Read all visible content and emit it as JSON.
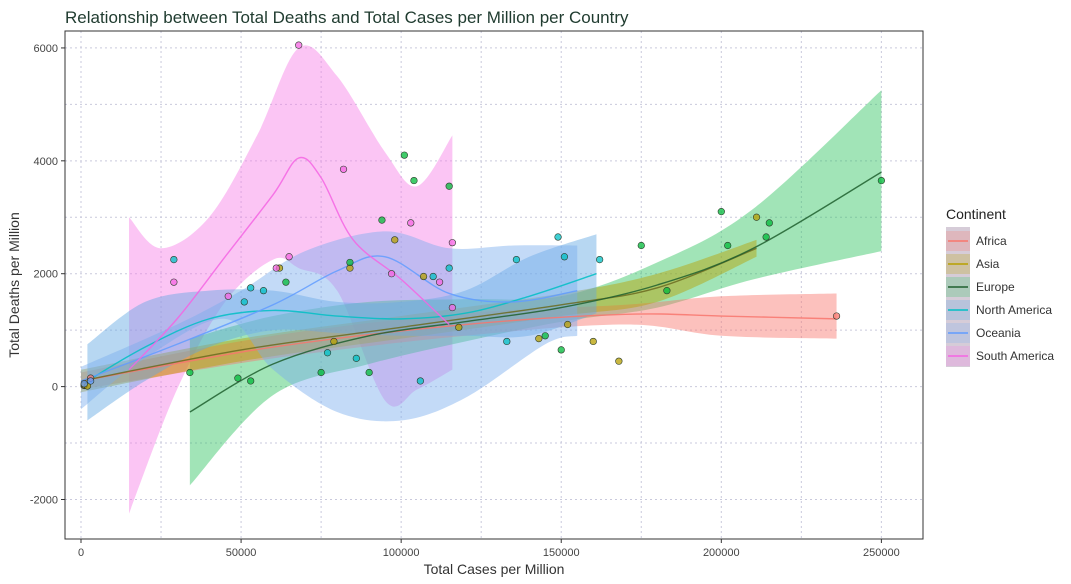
{
  "chart_data": {
    "type": "scatter",
    "title": "Relationship between Total Deaths and Total Cases per Million per Country",
    "xlabel": "Total Cases per Million",
    "ylabel": "Total Deaths per Million",
    "xlim": [
      -5000,
      263000
    ],
    "ylim": [
      -2700,
      6300
    ],
    "x_ticks": [
      0,
      50000,
      100000,
      150000,
      200000,
      250000
    ],
    "y_ticks": [
      -2000,
      0,
      2000,
      4000,
      6000
    ],
    "grid": true,
    "legend": {
      "title": "Continent",
      "position": "right"
    },
    "series": [
      {
        "name": "Africa",
        "color": "#F8766D",
        "points": [
          [
            1000,
            20
          ],
          [
            3000,
            150
          ],
          [
            236000,
            1250
          ]
        ],
        "smooth": [
          [
            0,
            100
          ],
          [
            60000,
            700
          ],
          [
            120000,
            1100
          ],
          [
            170000,
            1280
          ],
          [
            200000,
            1250
          ],
          [
            236000,
            1200
          ]
        ],
        "band_upper": [
          [
            0,
            250
          ],
          [
            60000,
            900
          ],
          [
            120000,
            1300
          ],
          [
            170000,
            1450
          ],
          [
            200000,
            1600
          ],
          [
            236000,
            1650
          ]
        ],
        "band_lower": [
          [
            0,
            -50
          ],
          [
            60000,
            500
          ],
          [
            120000,
            900
          ],
          [
            170000,
            1100
          ],
          [
            200000,
            900
          ],
          [
            236000,
            850
          ]
        ]
      },
      {
        "name": "Asia",
        "color": "#B79F00",
        "points": [
          [
            1000,
            30
          ],
          [
            2000,
            10
          ],
          [
            62000,
            2100
          ],
          [
            79000,
            800
          ],
          [
            84000,
            2100
          ],
          [
            98000,
            2600
          ],
          [
            107000,
            1950
          ],
          [
            118000,
            1050
          ],
          [
            143000,
            850
          ],
          [
            152000,
            1100
          ],
          [
            160000,
            800
          ],
          [
            168000,
            450
          ],
          [
            211000,
            3000
          ]
        ],
        "smooth": [
          [
            0,
            100
          ],
          [
            50000,
            650
          ],
          [
            100000,
            1050
          ],
          [
            150000,
            1450
          ],
          [
            180000,
            1750
          ],
          [
            211000,
            2450
          ]
        ],
        "band_upper": [
          [
            0,
            300
          ],
          [
            50000,
            850
          ],
          [
            100000,
            1250
          ],
          [
            150000,
            1650
          ],
          [
            180000,
            2000
          ],
          [
            211000,
            2600
          ]
        ],
        "band_lower": [
          [
            0,
            -100
          ],
          [
            50000,
            450
          ],
          [
            100000,
            850
          ],
          [
            150000,
            1250
          ],
          [
            180000,
            1500
          ],
          [
            211000,
            2300
          ]
        ]
      },
      {
        "name": "Europe",
        "color": "#00BA38",
        "points": [
          [
            34000,
            250
          ],
          [
            49000,
            150
          ],
          [
            53000,
            100
          ],
          [
            64000,
            1850
          ],
          [
            75000,
            250
          ],
          [
            84000,
            2200
          ],
          [
            90000,
            250
          ],
          [
            94000,
            2950
          ],
          [
            101000,
            4100
          ],
          [
            104000,
            3650
          ],
          [
            115000,
            3550
          ],
          [
            145000,
            900
          ],
          [
            150000,
            650
          ],
          [
            175000,
            2500
          ],
          [
            183000,
            1700
          ],
          [
            200000,
            3100
          ],
          [
            202000,
            2500
          ],
          [
            214000,
            2650
          ],
          [
            215000,
            2900
          ],
          [
            250000,
            3650
          ]
        ],
        "smooth": [
          [
            34000,
            -450
          ],
          [
            60000,
            400
          ],
          [
            90000,
            900
          ],
          [
            120000,
            1150
          ],
          [
            150000,
            1400
          ],
          [
            180000,
            1800
          ],
          [
            210000,
            2450
          ],
          [
            250000,
            3800
          ]
        ],
        "band_upper": [
          [
            34000,
            850
          ],
          [
            60000,
            1250
          ],
          [
            90000,
            1500
          ],
          [
            120000,
            1550
          ],
          [
            150000,
            1600
          ],
          [
            180000,
            2200
          ],
          [
            210000,
            3150
          ],
          [
            250000,
            5250
          ]
        ],
        "band_lower": [
          [
            34000,
            -1750
          ],
          [
            60000,
            -150
          ],
          [
            90000,
            400
          ],
          [
            120000,
            800
          ],
          [
            150000,
            1150
          ],
          [
            180000,
            1400
          ],
          [
            210000,
            1900
          ],
          [
            250000,
            2400
          ]
        ]
      },
      {
        "name": "North America",
        "color": "#00BFC4",
        "points": [
          [
            29000,
            2250
          ],
          [
            51000,
            1500
          ],
          [
            53000,
            1750
          ],
          [
            57000,
            1700
          ],
          [
            77000,
            600
          ],
          [
            86000,
            500
          ],
          [
            106000,
            100
          ],
          [
            110000,
            1950
          ],
          [
            115000,
            2100
          ],
          [
            133000,
            800
          ],
          [
            136000,
            2250
          ],
          [
            149000,
            2650
          ],
          [
            151000,
            2300
          ],
          [
            162000,
            2250
          ]
        ],
        "smooth": [
          [
            2000,
            100
          ],
          [
            20000,
            700
          ],
          [
            40000,
            1200
          ],
          [
            60000,
            1350
          ],
          [
            80000,
            1250
          ],
          [
            100000,
            1200
          ],
          [
            120000,
            1300
          ],
          [
            140000,
            1600
          ],
          [
            161000,
            2000
          ]
        ],
        "band_upper": [
          [
            2000,
            750
          ],
          [
            20000,
            1500
          ],
          [
            40000,
            1700
          ],
          [
            60000,
            1700
          ],
          [
            80000,
            1500
          ],
          [
            100000,
            1500
          ],
          [
            120000,
            1700
          ],
          [
            140000,
            2300
          ],
          [
            161000,
            2700
          ]
        ],
        "band_lower": [
          [
            2000,
            -600
          ],
          [
            20000,
            100
          ],
          [
            40000,
            700
          ],
          [
            60000,
            1000
          ],
          [
            80000,
            950
          ],
          [
            100000,
            900
          ],
          [
            120000,
            900
          ],
          [
            140000,
            900
          ],
          [
            161000,
            1300
          ]
        ]
      },
      {
        "name": "Oceania",
        "color": "#619CFF",
        "points": [
          [
            1000,
            50
          ],
          [
            3000,
            100
          ]
        ],
        "smooth": [
          [
            0,
            100
          ],
          [
            30000,
            750
          ],
          [
            60000,
            1450
          ],
          [
            80000,
            2050
          ],
          [
            95000,
            2300
          ],
          [
            115000,
            1650
          ],
          [
            135000,
            1500
          ],
          [
            155000,
            1700
          ]
        ],
        "band_upper": [
          [
            0,
            350
          ],
          [
            30000,
            1100
          ],
          [
            50000,
            1700
          ],
          [
            70000,
            2400
          ],
          [
            95000,
            2750
          ],
          [
            115000,
            2450
          ],
          [
            135000,
            2500
          ],
          [
            155000,
            2500
          ]
        ],
        "band_lower": [
          [
            0,
            -400
          ],
          [
            20000,
            500
          ],
          [
            45000,
            1200
          ],
          [
            60000,
            300
          ],
          [
            80000,
            -450
          ],
          [
            100000,
            -600
          ],
          [
            120000,
            -200
          ],
          [
            145000,
            750
          ],
          [
            155000,
            900
          ]
        ]
      },
      {
        "name": "South America",
        "color": "#F564E3",
        "points": [
          [
            29000,
            1850
          ],
          [
            46000,
            1600
          ],
          [
            61000,
            2100
          ],
          [
            65000,
            2300
          ],
          [
            68000,
            6050
          ],
          [
            82000,
            3850
          ],
          [
            97000,
            2000
          ],
          [
            103000,
            2900
          ],
          [
            112000,
            1850
          ],
          [
            116000,
            2550
          ],
          [
            116000,
            1400
          ]
        ],
        "smooth": [
          [
            15000,
            300
          ],
          [
            30000,
            1200
          ],
          [
            45000,
            2300
          ],
          [
            60000,
            3400
          ],
          [
            68000,
            4050
          ],
          [
            75000,
            3700
          ],
          [
            85000,
            2600
          ],
          [
            100000,
            1900
          ],
          [
            115000,
            1100
          ]
        ],
        "band_upper": [
          [
            15000,
            3000
          ],
          [
            25000,
            2450
          ],
          [
            40000,
            3000
          ],
          [
            55000,
            4450
          ],
          [
            68000,
            6000
          ],
          [
            80000,
            5500
          ],
          [
            95000,
            4150
          ],
          [
            105000,
            3550
          ],
          [
            116000,
            4450
          ]
        ],
        "band_lower": [
          [
            15000,
            -2250
          ],
          [
            30000,
            -50
          ],
          [
            45000,
            1500
          ],
          [
            60000,
            2250
          ],
          [
            68000,
            2100
          ],
          [
            80000,
            1700
          ],
          [
            95000,
            -250
          ],
          [
            105000,
            -50
          ],
          [
            116000,
            300
          ]
        ]
      }
    ]
  }
}
